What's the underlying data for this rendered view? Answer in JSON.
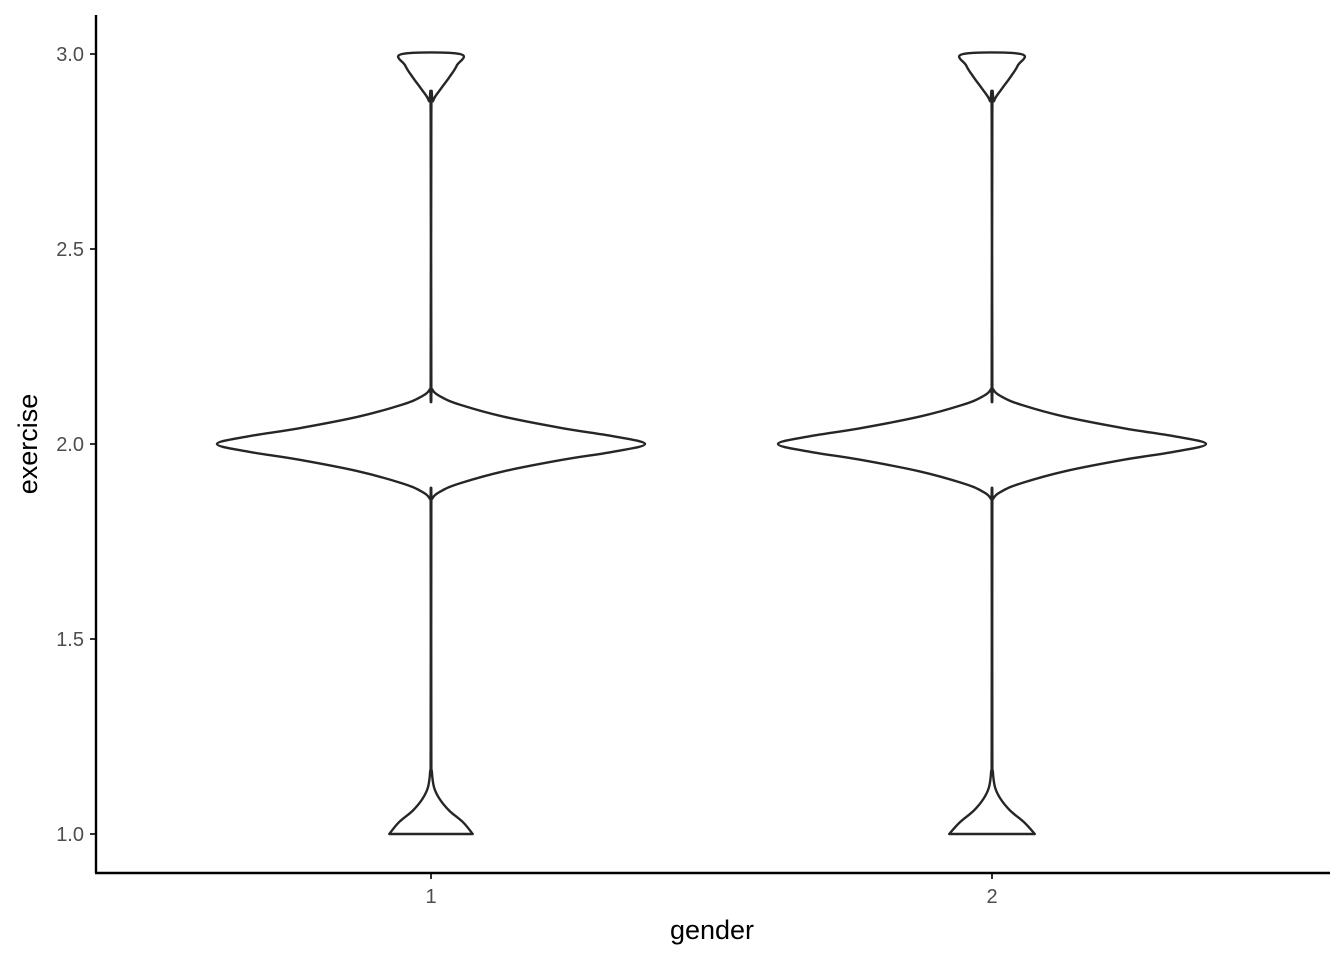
{
  "chart_data": {
    "type": "violin",
    "title": "",
    "xlabel": "gender",
    "ylabel": "exercise",
    "categories": [
      "1",
      "2"
    ],
    "ylim": [
      0.9,
      3.1
    ],
    "yticks": [
      "1.0",
      "1.5",
      "2.0",
      "2.5",
      "3.0"
    ],
    "ytick_values": [
      1.0,
      1.5,
      2.0,
      2.5,
      3.0
    ],
    "grid": false,
    "legend": "none",
    "colors": {
      "outline": "#262626",
      "fill": "#ffffff",
      "axis": "#000000",
      "tick_label": "#4d4d4d"
    },
    "series": [
      {
        "category": "1",
        "min": 1.0,
        "max": 3.0,
        "density_profile": [
          [
            1.0,
            0.195
          ],
          [
            1.03,
            0.15
          ],
          [
            1.06,
            0.085
          ],
          [
            1.09,
            0.04
          ],
          [
            1.12,
            0.014
          ],
          [
            1.16,
            0.004
          ],
          [
            1.22,
            0.0015
          ],
          [
            1.83,
            0.0015
          ],
          [
            1.86,
            0.006
          ],
          [
            1.88,
            0.05
          ],
          [
            1.9,
            0.14
          ],
          [
            1.93,
            0.34
          ],
          [
            1.96,
            0.62
          ],
          [
            1.98,
            0.85
          ],
          [
            2.0,
            1.0
          ],
          [
            2.02,
            0.85
          ],
          [
            2.04,
            0.62
          ],
          [
            2.07,
            0.34
          ],
          [
            2.1,
            0.14
          ],
          [
            2.12,
            0.05
          ],
          [
            2.14,
            0.006
          ],
          [
            2.17,
            0.0015
          ],
          [
            2.84,
            0.0015
          ],
          [
            2.88,
            0.01
          ],
          [
            2.91,
            0.045
          ],
          [
            2.94,
            0.085
          ],
          [
            2.97,
            0.12
          ],
          [
            3.0,
            0.135
          ]
        ]
      },
      {
        "category": "2",
        "min": 1.0,
        "max": 3.0,
        "density_profile": [
          [
            1.0,
            0.2
          ],
          [
            1.03,
            0.15
          ],
          [
            1.06,
            0.085
          ],
          [
            1.09,
            0.04
          ],
          [
            1.12,
            0.014
          ],
          [
            1.16,
            0.004
          ],
          [
            1.22,
            0.0015
          ],
          [
            1.83,
            0.0015
          ],
          [
            1.86,
            0.006
          ],
          [
            1.88,
            0.05
          ],
          [
            1.9,
            0.14
          ],
          [
            1.93,
            0.34
          ],
          [
            1.96,
            0.62
          ],
          [
            1.98,
            0.85
          ],
          [
            2.0,
            1.0
          ],
          [
            2.02,
            0.85
          ],
          [
            2.04,
            0.62
          ],
          [
            2.07,
            0.34
          ],
          [
            2.1,
            0.14
          ],
          [
            2.12,
            0.05
          ],
          [
            2.14,
            0.006
          ],
          [
            2.17,
            0.0015
          ],
          [
            2.84,
            0.0015
          ],
          [
            2.88,
            0.01
          ],
          [
            2.91,
            0.045
          ],
          [
            2.94,
            0.085
          ],
          [
            2.97,
            0.12
          ],
          [
            3.0,
            0.135
          ]
        ]
      }
    ]
  }
}
